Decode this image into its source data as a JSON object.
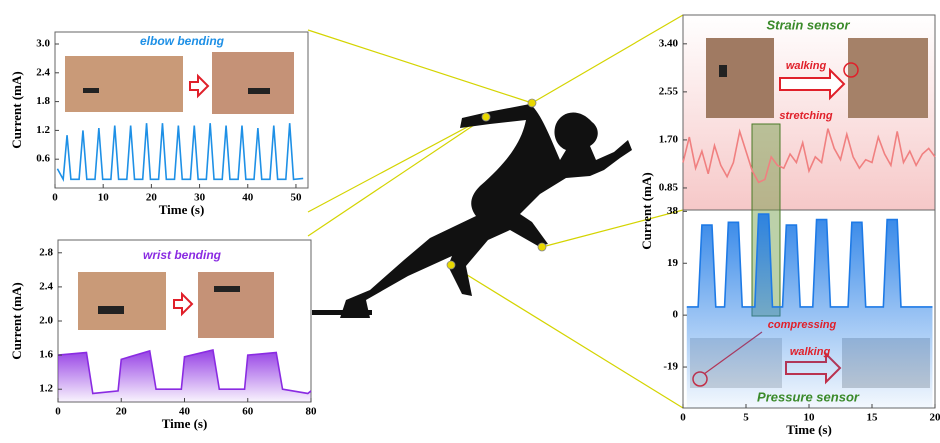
{
  "chart_data": [
    {
      "type": "line",
      "title": "elbow bending",
      "color": "#1e90e6",
      "xlabel": "Time (s)",
      "ylabel": "Current (mA)",
      "xlim": [
        0,
        52.5
      ],
      "xticks": [
        0,
        10,
        20,
        30,
        40,
        50
      ],
      "ylim": [
        0,
        3.25
      ],
      "yticks": [
        0.6,
        1.2,
        1.8,
        2.4,
        {
          "value": 3.0,
          "label": "3.0"
        }
      ],
      "x": [
        0.5,
        1.7,
        2.5,
        3.3,
        5.0,
        5.8,
        6.6,
        8.3,
        9.1,
        9.9,
        11.6,
        12.4,
        13.2,
        14.9,
        15.7,
        16.5,
        18.2,
        19.0,
        19.8,
        21.5,
        22.3,
        23.1,
        24.8,
        25.6,
        26.4,
        28.1,
        28.9,
        29.7,
        31.4,
        32.2,
        33.0,
        34.7,
        35.5,
        36.3,
        38.0,
        38.8,
        39.6,
        41.3,
        42.1,
        42.9,
        44.6,
        45.4,
        46.2,
        47.9,
        48.7,
        49.5,
        51.5
      ],
      "values": [
        0.4,
        0.18,
        1.1,
        0.18,
        0.18,
        1.2,
        0.18,
        0.18,
        1.25,
        0.18,
        0.18,
        1.3,
        0.18,
        0.18,
        1.3,
        0.18,
        0.18,
        1.35,
        0.18,
        0.18,
        1.35,
        0.18,
        0.18,
        1.3,
        0.18,
        0.18,
        1.3,
        0.18,
        0.18,
        1.35,
        0.18,
        0.18,
        1.3,
        0.18,
        0.18,
        1.3,
        0.18,
        0.18,
        1.25,
        0.18,
        0.18,
        1.3,
        0.18,
        0.18,
        1.35,
        0.18,
        0.2
      ]
    },
    {
      "type": "area",
      "title": "wrist bending",
      "color": "#8a2be2",
      "xlabel": "Time (s)",
      "ylabel": "Current (mA)",
      "xlim": [
        0,
        80
      ],
      "xticks": [
        0,
        20,
        40,
        60,
        80
      ],
      "ylim": [
        1.05,
        2.95
      ],
      "yticks": [
        1.2,
        1.6,
        {
          "value": 2.0,
          "label": "2.0"
        },
        2.4,
        2.8
      ],
      "x": [
        0,
        9,
        11,
        19,
        20,
        29,
        31,
        39,
        40,
        49,
        51,
        59,
        60,
        69,
        71,
        79,
        80
      ],
      "values": [
        1.6,
        1.63,
        1.15,
        1.18,
        1.55,
        1.65,
        1.2,
        1.2,
        1.58,
        1.66,
        1.2,
        1.2,
        1.6,
        1.63,
        1.2,
        1.15,
        1.18
      ]
    },
    {
      "type": "line",
      "title": "Strain sensor",
      "color": "#f08080",
      "xlim": [
        0,
        20
      ],
      "ylim": [
        0.46,
        3.91
      ],
      "yticks": [
        0.85,
        {
          "value": 1.7,
          "label": "1.70"
        },
        2.55,
        {
          "value": 3.4,
          "label": "3.40"
        }
      ],
      "x": [
        0,
        0.5,
        1,
        1.5,
        2,
        2.5,
        3,
        3.5,
        4,
        4.5,
        5,
        5.5,
        6,
        6.5,
        7,
        7.5,
        8,
        8.5,
        9,
        9.5,
        10,
        10.5,
        11,
        11.5,
        12,
        12.5,
        13,
        13.5,
        14,
        14.5,
        15,
        15.5,
        16,
        16.5,
        17,
        17.5,
        18,
        18.5,
        19,
        19.5,
        20
      ],
      "values": [
        1.3,
        1.75,
        1.2,
        1.5,
        1.1,
        1.6,
        1.25,
        1.05,
        1.3,
        1.85,
        1.5,
        1.15,
        0.95,
        1.0,
        1.4,
        1.25,
        1.2,
        1.45,
        1.3,
        1.65,
        1.15,
        1.4,
        1.3,
        1.9,
        1.55,
        1.35,
        1.8,
        1.4,
        1.2,
        1.35,
        1.3,
        1.75,
        1.45,
        1.25,
        1.85,
        1.3,
        1.5,
        1.25,
        1.45,
        1.55,
        1.4
      ],
      "annotations": [
        "walking",
        "stretching"
      ]
    },
    {
      "type": "area",
      "title": "Pressure sensor",
      "color": "#1e7ae6",
      "xlabel": "Time (s)",
      "ylabel": "Current (mA)",
      "xlim": [
        0,
        20
      ],
      "xticks": [
        0,
        5,
        10,
        15,
        20
      ],
      "ylim": [
        -34,
        38.5
      ],
      "yticks": [
        38,
        19,
        0,
        -19
      ],
      "x": [
        0.3,
        1.2,
        1.5,
        2.3,
        2.6,
        3.3,
        3.6,
        4.4,
        4.7,
        5.7,
        6.0,
        6.8,
        7.1,
        7.9,
        8.2,
        9.0,
        9.3,
        10.3,
        10.6,
        11.4,
        11.7,
        13.1,
        13.4,
        14.2,
        14.5,
        15.9,
        16.2,
        17.0,
        17.3,
        19.8
      ],
      "values": [
        3,
        3,
        33,
        33,
        3,
        3,
        34,
        34,
        3,
        3,
        37,
        37,
        3,
        3,
        33,
        33,
        3,
        3,
        35,
        35,
        3,
        3,
        34,
        34,
        3,
        3,
        35,
        35,
        3,
        3
      ],
      "annotations": [
        "compressing",
        "walking"
      ]
    }
  ]
}
